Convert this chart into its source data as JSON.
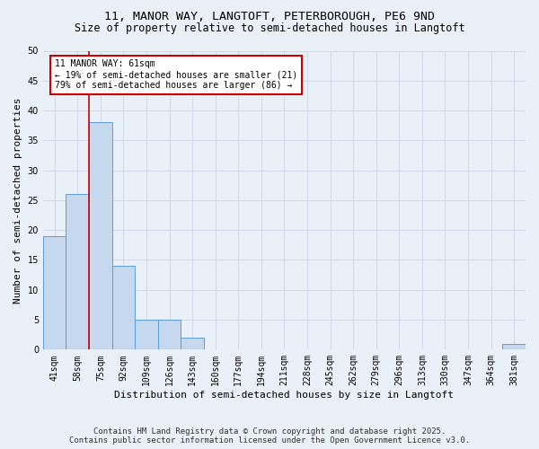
{
  "title_line1": "11, MANOR WAY, LANGTOFT, PETERBOROUGH, PE6 9ND",
  "title_line2": "Size of property relative to semi-detached houses in Langtoft",
  "xlabel": "Distribution of semi-detached houses by size in Langtoft",
  "ylabel": "Number of semi-detached properties",
  "categories": [
    "41sqm",
    "58sqm",
    "75sqm",
    "92sqm",
    "109sqm",
    "126sqm",
    "143sqm",
    "160sqm",
    "177sqm",
    "194sqm",
    "211sqm",
    "228sqm",
    "245sqm",
    "262sqm",
    "279sqm",
    "296sqm",
    "313sqm",
    "330sqm",
    "347sqm",
    "364sqm",
    "381sqm"
  ],
  "values": [
    19,
    26,
    38,
    14,
    5,
    5,
    2,
    0,
    0,
    0,
    0,
    0,
    0,
    0,
    0,
    0,
    0,
    0,
    0,
    0,
    1
  ],
  "bar_color": "#c5d8ed",
  "bar_edge_color": "#5b9bd5",
  "grid_color": "#d0d8e8",
  "background_color": "#eaf0f8",
  "vline_x": 1.5,
  "vline_color": "#cc0000",
  "annotation_text": "11 MANOR WAY: 61sqm\n← 19% of semi-detached houses are smaller (21)\n79% of semi-detached houses are larger (86) →",
  "annotation_box_color": "#ffffff",
  "annotation_box_edge": "#cc0000",
  "footer_line1": "Contains HM Land Registry data © Crown copyright and database right 2025.",
  "footer_line2": "Contains public sector information licensed under the Open Government Licence v3.0.",
  "ylim": [
    0,
    50
  ],
  "yticks": [
    0,
    5,
    10,
    15,
    20,
    25,
    30,
    35,
    40,
    45,
    50
  ],
  "title_fontsize": 9.5,
  "subtitle_fontsize": 8.5,
  "axis_label_fontsize": 8,
  "tick_fontsize": 7,
  "annotation_fontsize": 7,
  "footer_fontsize": 6.5
}
